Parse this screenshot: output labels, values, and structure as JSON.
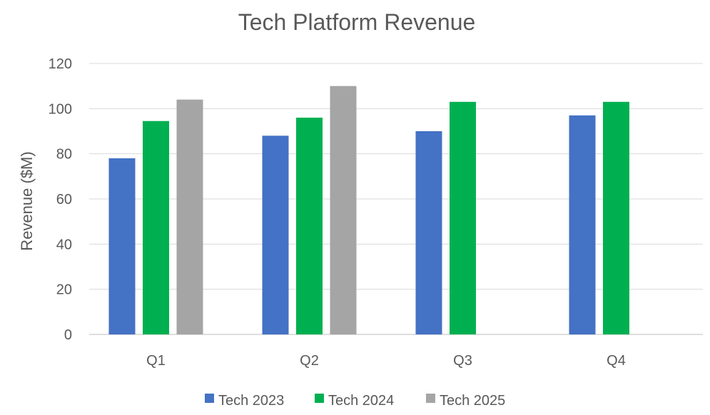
{
  "chart_data": {
    "type": "bar",
    "title": "Tech Platform Revenue",
    "xlabel": "",
    "ylabel": "Revenue ($M)",
    "categories": [
      "Q1",
      "Q2",
      "Q3",
      "Q4"
    ],
    "series": [
      {
        "name": "Tech 2023",
        "color": "#4472C4",
        "values": [
          78,
          88,
          90,
          97
        ]
      },
      {
        "name": "Tech 2024",
        "color": "#00B050",
        "values": [
          94.5,
          96,
          103,
          103
        ]
      },
      {
        "name": "Tech 2025",
        "color": "#A5A5A5",
        "values": [
          104,
          110,
          null,
          null
        ]
      }
    ],
    "ylim": [
      0,
      120
    ],
    "yticks": [
      0,
      20,
      40,
      60,
      80,
      100,
      120
    ],
    "grid": true,
    "legend": "bottom"
  }
}
